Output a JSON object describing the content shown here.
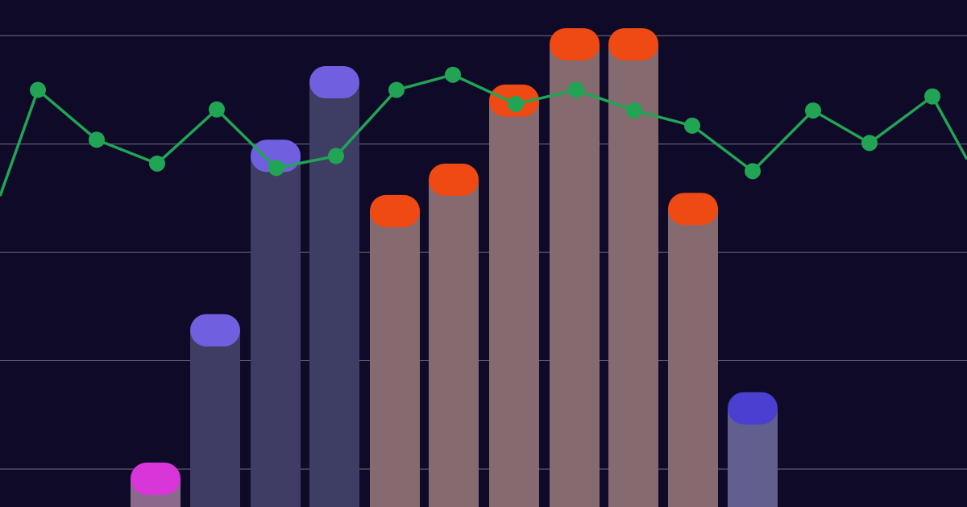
{
  "chart_data": {
    "type": "bar",
    "xlim": [
      0,
      1200
    ],
    "ylim": [
      -0.35,
      4.33
    ],
    "yticks": [
      0,
      1,
      2,
      3,
      4
    ],
    "grid": true,
    "grid_color": "#8a87a0",
    "background": "#0e0a28",
    "series": [
      {
        "type": "bar",
        "x": [
          193,
          267,
          342,
          415,
          490,
          563,
          638,
          713,
          786,
          860,
          934
        ],
        "values": [
          0.06,
          1.43,
          3.04,
          3.72,
          2.53,
          2.82,
          3.55,
          4.07,
          4.07,
          2.55,
          0.71
        ],
        "colors": [
          "#d936d9",
          "#7060e0",
          "#7060e0",
          "#7060e0",
          "#f04a14",
          "#f04a14",
          "#f04a14",
          "#f04a14",
          "#f04a14",
          "#f04a14",
          "#4a3fd0"
        ],
        "body_colors": [
          "#8a6a8c",
          "#403d64",
          "#403d64",
          "#3e3d63",
          "#856a70",
          "#856a70",
          "#856a70",
          "#856a70",
          "#856a70",
          "#856a70",
          "#625e8e"
        ]
      },
      {
        "type": "line",
        "color": "#22a455",
        "x": [
          0,
          47,
          120,
          195,
          269,
          343,
          417,
          492,
          562,
          640,
          715,
          787,
          859,
          934,
          1009,
          1079,
          1157,
          1200
        ],
        "values": [
          2.52,
          3.5,
          3.04,
          2.82,
          3.32,
          2.78,
          2.89,
          3.5,
          3.64,
          3.37,
          3.5,
          3.31,
          3.17,
          2.75,
          3.31,
          3.01,
          3.44,
          2.86
        ]
      }
    ]
  }
}
